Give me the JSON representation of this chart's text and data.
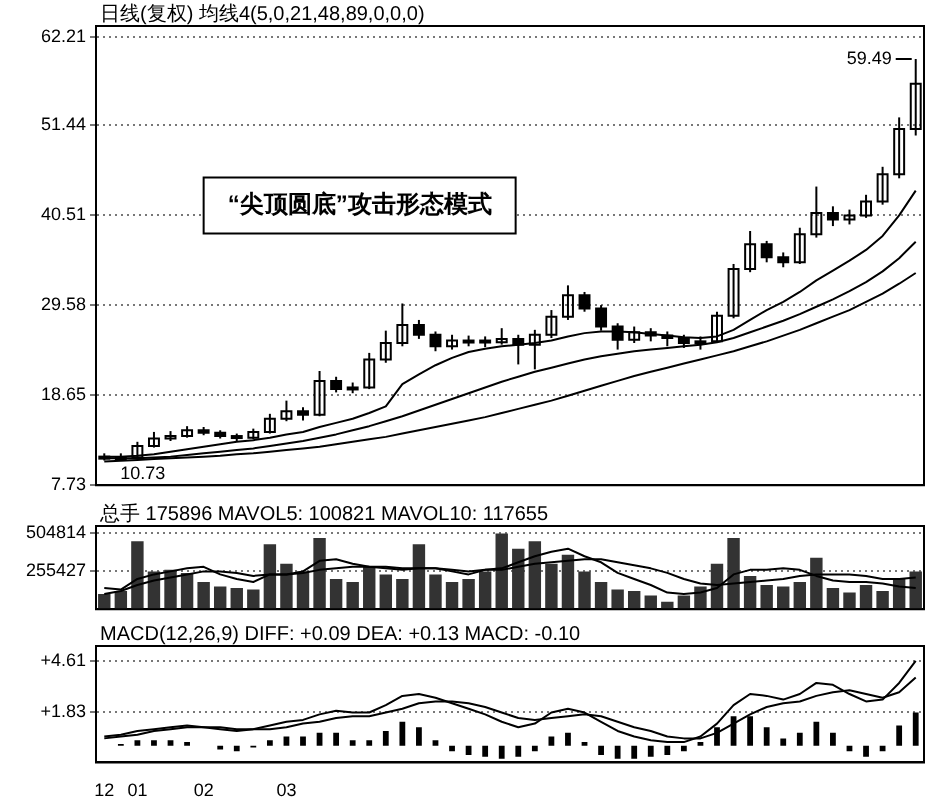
{
  "chart_data": [
    {
      "type": "candlestick",
      "title": "日线(复权) 均线4(5,0,21,48,89,0,0,0)",
      "categories": [
        null,
        null,
        null,
        null,
        null,
        null,
        null,
        null,
        null,
        null,
        null,
        null,
        null,
        null,
        null,
        null,
        null,
        null,
        null,
        null,
        null,
        null,
        null,
        null,
        null,
        null,
        null,
        null,
        null,
        null,
        null,
        null,
        null,
        null,
        null,
        null,
        null,
        null,
        null,
        null,
        null,
        null,
        null,
        null,
        null,
        null,
        null,
        null,
        null,
        null
      ],
      "color": "#000000",
      "ohlc": [
        [
          11.2,
          11.6,
          10.73,
          11.0
        ],
        [
          11.0,
          11.6,
          10.8,
          11.1
        ],
        [
          11.1,
          13.0,
          11.0,
          12.5
        ],
        [
          12.5,
          14.2,
          12.3,
          13.4
        ],
        [
          13.4,
          14.3,
          13.1,
          13.7
        ],
        [
          13.7,
          14.9,
          13.5,
          14.4
        ],
        [
          14.4,
          14.8,
          13.8,
          14.1
        ],
        [
          14.1,
          14.4,
          13.4,
          13.7
        ],
        [
          13.7,
          14.0,
          13.1,
          13.5
        ],
        [
          13.5,
          14.6,
          13.3,
          14.2
        ],
        [
          14.2,
          16.4,
          14.0,
          15.8
        ],
        [
          15.8,
          18.0,
          15.5,
          16.7
        ],
        [
          16.7,
          17.2,
          15.6,
          16.3
        ],
        [
          16.3,
          21.6,
          16.1,
          20.4
        ],
        [
          20.4,
          20.9,
          19.0,
          19.4
        ],
        [
          19.4,
          20.2,
          18.9,
          19.6
        ],
        [
          19.6,
          23.8,
          19.4,
          23.0
        ],
        [
          23.0,
          26.5,
          22.6,
          25.0
        ],
        [
          25.0,
          29.8,
          24.6,
          27.2
        ],
        [
          27.2,
          27.8,
          25.5,
          26.0
        ],
        [
          26.0,
          26.4,
          24.0,
          24.6
        ],
        [
          24.6,
          26.0,
          24.2,
          25.3
        ],
        [
          25.3,
          25.9,
          24.6,
          25.3
        ],
        [
          25.3,
          25.8,
          24.5,
          25.1
        ],
        [
          25.1,
          26.8,
          24.8,
          25.5
        ],
        [
          25.5,
          26.0,
          22.4,
          24.8
        ],
        [
          24.8,
          26.6,
          21.8,
          26.0
        ],
        [
          26.0,
          29.0,
          25.6,
          28.2
        ],
        [
          28.2,
          32.0,
          27.8,
          30.8
        ],
        [
          30.8,
          31.2,
          28.8,
          29.2
        ],
        [
          29.2,
          29.6,
          26.5,
          27.0
        ],
        [
          27.0,
          27.4,
          24.2,
          25.4
        ],
        [
          25.4,
          27.0,
          25.0,
          26.3
        ],
        [
          26.3,
          26.8,
          25.2,
          25.9
        ],
        [
          25.9,
          26.4,
          24.6,
          25.6
        ],
        [
          25.6,
          26.0,
          24.4,
          25.0
        ],
        [
          25.0,
          25.8,
          24.2,
          25.2
        ],
        [
          25.2,
          28.8,
          25.0,
          28.3
        ],
        [
          28.3,
          34.6,
          28.0,
          34.0
        ],
        [
          34.0,
          38.6,
          33.6,
          37.0
        ],
        [
          37.0,
          37.4,
          34.8,
          35.4
        ],
        [
          35.4,
          36.0,
          34.2,
          34.8
        ],
        [
          34.8,
          39.0,
          34.6,
          38.2
        ],
        [
          38.2,
          44.0,
          37.8,
          40.8
        ],
        [
          40.8,
          41.6,
          39.2,
          40.0
        ],
        [
          40.0,
          41.2,
          39.4,
          40.5
        ],
        [
          40.5,
          43.0,
          40.2,
          42.2
        ],
        [
          42.2,
          46.4,
          41.8,
          45.5
        ],
        [
          45.5,
          52.4,
          45.0,
          51.0
        ],
        [
          51.0,
          59.49,
          50.2,
          56.5
        ]
      ],
      "series": [
        {
          "type": "line",
          "color": "#000000",
          "values": [
            11.2,
            11.2,
            11.3,
            11.5,
            11.8,
            12.1,
            12.4,
            12.7,
            13.0,
            13.2,
            13.5,
            13.9,
            14.2,
            14.8,
            15.3,
            15.8,
            16.5,
            17.3,
            20.0,
            21.2,
            22.3,
            23.2,
            23.9,
            24.3,
            24.6,
            24.8,
            25.0,
            25.3,
            25.8,
            26.2,
            26.4,
            26.4,
            26.3,
            26.1,
            25.9,
            25.7,
            25.6,
            25.8,
            26.6,
            27.8,
            29.0,
            30.0,
            31.2,
            32.6,
            33.8,
            35.0,
            36.3,
            38.0,
            40.5,
            43.5
          ]
        },
        {
          "type": "line",
          "color": "#000000",
          "values": [
            11.0,
            11.0,
            11.0,
            11.1,
            11.2,
            11.4,
            11.6,
            11.8,
            12.0,
            12.2,
            12.5,
            12.8,
            13.1,
            13.5,
            13.9,
            14.4,
            14.9,
            15.5,
            16.1,
            16.8,
            17.5,
            18.2,
            18.9,
            19.6,
            20.3,
            20.9,
            21.5,
            22.0,
            22.5,
            23.0,
            23.4,
            23.7,
            24.0,
            24.2,
            24.4,
            24.6,
            24.8,
            25.1,
            25.6,
            26.3,
            27.0,
            27.7,
            28.5,
            29.4,
            30.3,
            31.3,
            32.4,
            33.7,
            35.3,
            37.3
          ]
        },
        {
          "type": "line",
          "color": "#000000",
          "values": [
            10.6,
            10.7,
            10.8,
            10.9,
            11.0,
            11.1,
            11.2,
            11.3,
            11.5,
            11.6,
            11.8,
            12.0,
            12.2,
            12.4,
            12.7,
            13.0,
            13.3,
            13.6,
            14.0,
            14.4,
            14.8,
            15.2,
            15.6,
            16.0,
            16.5,
            17.0,
            17.5,
            18.0,
            18.6,
            19.2,
            19.8,
            20.4,
            21.0,
            21.5,
            22.0,
            22.5,
            23.0,
            23.5,
            24.0,
            24.6,
            25.2,
            25.9,
            26.6,
            27.4,
            28.2,
            29.0,
            30.0,
            31.0,
            32.2,
            33.5
          ]
        }
      ],
      "ylim": [
        7.73,
        63.5
      ],
      "yticks": [
        7.73,
        18.65,
        29.58,
        40.51,
        51.44,
        62.21
      ],
      "grid": "y",
      "tick_labels": "y",
      "legend": false,
      "marker": "none",
      "annotations": [
        "“尖顶圆底”攻击形态模式",
        "59.49",
        "10.73"
      ]
    },
    {
      "type": "bar",
      "title": "总手 175896 MAVOL5: 100821 MAVOL10: 117655",
      "categories": [
        null,
        null,
        null,
        null,
        null,
        null,
        null,
        null,
        null,
        null,
        null,
        null,
        null,
        null,
        null,
        null,
        null,
        null,
        null,
        null,
        null,
        null,
        null,
        null,
        null,
        null,
        null,
        null,
        null,
        null,
        null,
        null,
        null,
        null,
        null,
        null,
        null,
        null,
        null,
        null,
        null,
        null,
        null,
        null,
        null,
        null,
        null,
        null,
        null,
        null
      ],
      "series": [
        {
          "color": "#333333",
          "values": [
            100000,
            120000,
            450000,
            250000,
            260000,
            240000,
            180000,
            150000,
            140000,
            130000,
            430000,
            300000,
            250000,
            470000,
            200000,
            180000,
            280000,
            230000,
            200000,
            430000,
            230000,
            180000,
            200000,
            250000,
            500000,
            400000,
            450000,
            300000,
            360000,
            250000,
            180000,
            130000,
            120000,
            90000,
            50000,
            90000,
            150000,
            300000,
            470000,
            220000,
            160000,
            150000,
            180000,
            340000,
            140000,
            110000,
            160000,
            120000,
            200000,
            250000
          ]
        },
        {
          "type": "line",
          "color": "#000000",
          "values": [
            140000,
            130000,
            200000,
            230000,
            250000,
            270000,
            280000,
            230000,
            200000,
            180000,
            230000,
            230000,
            250000,
            320000,
            330000,
            300000,
            280000,
            270000,
            260000,
            270000,
            270000,
            250000,
            230000,
            260000,
            270000,
            310000,
            350000,
            380000,
            400000,
            350000,
            310000,
            240000,
            200000,
            160000,
            110000,
            100000,
            110000,
            140000,
            230000,
            260000,
            260000,
            270000,
            260000,
            220000,
            190000,
            180000,
            180000,
            170000,
            150000,
            140000
          ]
        },
        {
          "type": "line",
          "color": "#000000",
          "values": [
            100000,
            120000,
            160000,
            190000,
            210000,
            230000,
            250000,
            250000,
            240000,
            220000,
            230000,
            230000,
            240000,
            260000,
            270000,
            280000,
            280000,
            280000,
            270000,
            270000,
            270000,
            260000,
            250000,
            260000,
            260000,
            280000,
            300000,
            310000,
            320000,
            330000,
            330000,
            310000,
            290000,
            270000,
            240000,
            200000,
            170000,
            160000,
            170000,
            180000,
            190000,
            200000,
            220000,
            230000,
            230000,
            230000,
            220000,
            200000,
            200000,
            210000
          ]
        }
      ],
      "ylim": [
        0,
        550000
      ],
      "yticks": [
        255427,
        504814
      ],
      "grid": "y",
      "tick_labels": "y",
      "legend": false,
      "marker": "none"
    },
    {
      "type": "bar",
      "title": "MACD(12,26,9) DIFF: +0.09 DEA: +0.13 MACD: -0.10",
      "categories": [
        "12",
        null,
        "01",
        null,
        null,
        null,
        "02",
        null,
        null,
        null,
        null,
        "03",
        null,
        null,
        null,
        null,
        null,
        null,
        null,
        null,
        null,
        null,
        null,
        null,
        null,
        null,
        null,
        null,
        null,
        null,
        null,
        null,
        null,
        null,
        null,
        null,
        null,
        null,
        null,
        null,
        null,
        null,
        null,
        null,
        null,
        null,
        null,
        null,
        null,
        null
      ],
      "series": [
        {
          "color": "#000000",
          "values": [
            0,
            0.1,
            0.3,
            0.3,
            0.3,
            0.2,
            0,
            -0.2,
            -0.3,
            -0.1,
            0.3,
            0.5,
            0.5,
            0.7,
            0.7,
            0.3,
            0.3,
            0.8,
            1.3,
            1.0,
            0.3,
            -0.3,
            -0.5,
            -0.6,
            -0.7,
            -0.6,
            -0.3,
            0.5,
            0.7,
            0.2,
            -0.5,
            -0.7,
            -0.7,
            -0.6,
            -0.5,
            -0.3,
            0.2,
            1.0,
            1.6,
            1.6,
            1.0,
            0.4,
            0.7,
            1.3,
            0.7,
            -0.3,
            -0.6,
            -0.3,
            1.1,
            1.8
          ]
        },
        {
          "type": "line",
          "color": "#000000",
          "values": [
            0.5,
            0.6,
            0.8,
            0.9,
            1.0,
            1.1,
            1.0,
            0.9,
            0.8,
            0.9,
            1.1,
            1.3,
            1.4,
            1.7,
            1.9,
            1.8,
            1.8,
            2.2,
            2.7,
            2.8,
            2.6,
            2.3,
            2.0,
            1.7,
            1.3,
            1.0,
            1.2,
            1.8,
            2.0,
            1.8,
            1.3,
            0.8,
            0.5,
            0.3,
            0.2,
            0.2,
            0.5,
            1.2,
            2.2,
            2.8,
            2.7,
            2.5,
            2.8,
            3.4,
            3.3,
            2.8,
            2.4,
            2.5,
            3.4,
            4.6
          ]
        },
        {
          "type": "line",
          "color": "#000000",
          "values": [
            0.4,
            0.5,
            0.6,
            0.8,
            0.9,
            1.0,
            1.0,
            1.0,
            0.9,
            0.9,
            0.9,
            1.0,
            1.2,
            1.3,
            1.5,
            1.6,
            1.6,
            1.8,
            2.0,
            2.3,
            2.4,
            2.4,
            2.3,
            2.1,
            1.8,
            1.5,
            1.4,
            1.5,
            1.6,
            1.7,
            1.6,
            1.3,
            1.0,
            0.8,
            0.5,
            0.4,
            0.4,
            0.7,
            1.2,
            1.7,
            2.1,
            2.3,
            2.4,
            2.7,
            2.9,
            3.0,
            2.8,
            2.6,
            2.9,
            3.7
          ]
        }
      ],
      "ylim": [
        -0.9,
        5.4
      ],
      "yticks": [
        {
          "value": 1.83,
          "label": "+1.83"
        },
        {
          "value": 4.61,
          "label": "+4.61"
        }
      ],
      "grid": "y",
      "legend": false,
      "marker": "none"
    }
  ]
}
